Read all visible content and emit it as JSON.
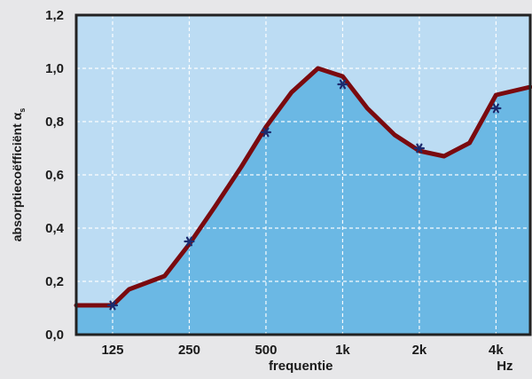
{
  "chart_data": {
    "type": "area",
    "xlabel": "frequentie",
    "x_unit": "Hz",
    "ylabel": "absorptiecoëfficiënt α",
    "ylabel_sub": "s",
    "ylim": [
      0,
      1.2
    ],
    "y_ticks": [
      "0,0",
      "0,2",
      "0,4",
      "0,6",
      "0,8",
      "1,0",
      "1,2"
    ],
    "x_ticks": [
      {
        "label": "125",
        "hz": 125
      },
      {
        "label": "250",
        "hz": 250
      },
      {
        "label": "500",
        "hz": 500
      },
      {
        "label": "1k",
        "hz": 1000
      },
      {
        "label": "2k",
        "hz": 2000
      },
      {
        "label": "4k",
        "hz": 4000
      }
    ],
    "xlim_hz": [
      90,
      5450
    ],
    "grid": true,
    "curve": {
      "name": "",
      "color": "#7a0a0f",
      "fill": "#6bb8e4",
      "x": [
        90,
        125,
        145,
        200,
        250,
        315,
        400,
        500,
        630,
        800,
        1000,
        1250,
        1600,
        2000,
        2500,
        3150,
        4000,
        5450
      ],
      "values": [
        0.11,
        0.11,
        0.17,
        0.22,
        0.34,
        0.48,
        0.63,
        0.78,
        0.91,
        1.0,
        0.97,
        0.85,
        0.75,
        0.69,
        0.67,
        0.72,
        0.9,
        0.93
      ]
    },
    "measured": {
      "name": "",
      "color": "#1d2b6e",
      "marker": "asterisk",
      "x": [
        125,
        250,
        500,
        1000,
        2000,
        4000
      ],
      "values": [
        0.11,
        0.35,
        0.76,
        0.94,
        0.7,
        0.85
      ]
    },
    "colors": {
      "background": "#e7e7e9",
      "plot_bg": "#bcdcf3",
      "frame": "#222222",
      "grid": "#ffffff"
    }
  }
}
